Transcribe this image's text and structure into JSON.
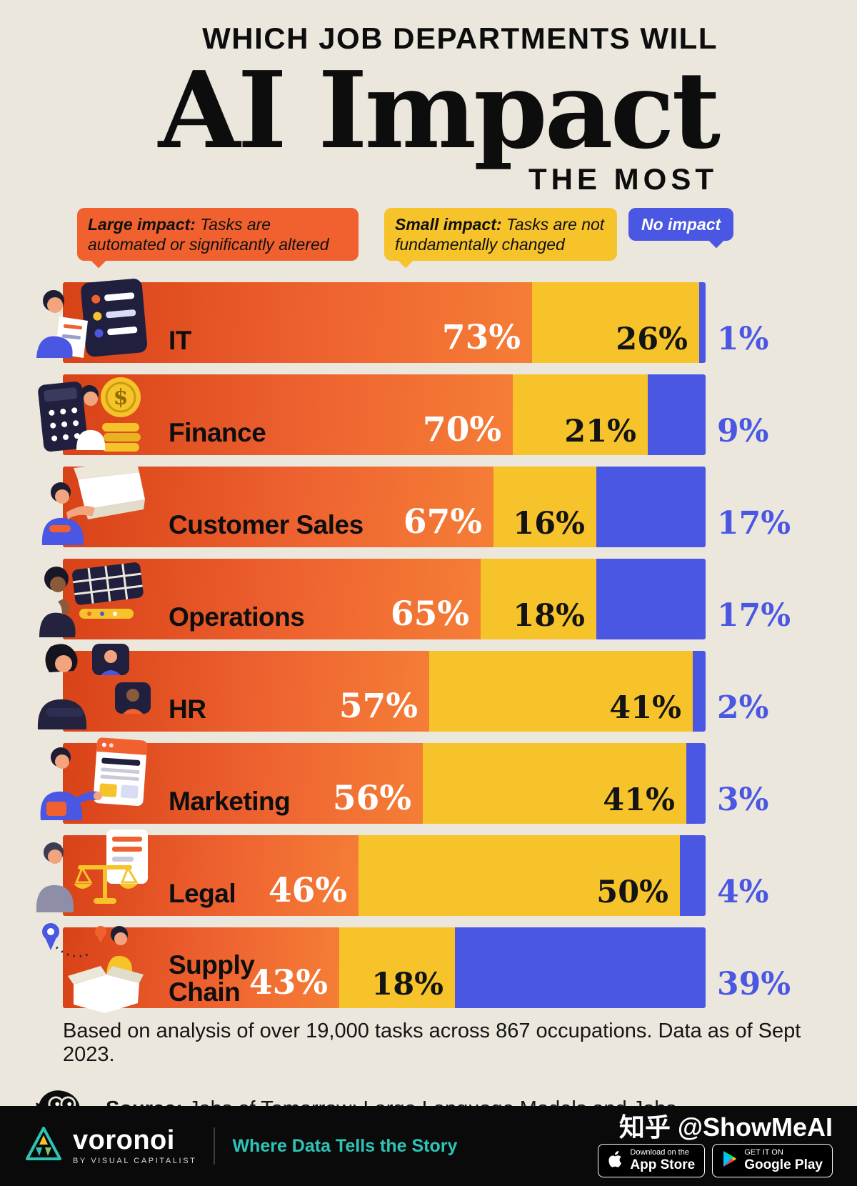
{
  "title": {
    "line1": "WHICH JOB DEPARTMENTS WILL",
    "main": "AI Impact",
    "line3": "THE MOST"
  },
  "legend": [
    {
      "lead": "Large impact:",
      "rest": " Tasks are automated or significantly altered"
    },
    {
      "lead": "Small impact:",
      "rest": " Tasks are not fundamentally changed"
    },
    {
      "lead": "No impact",
      "rest": ""
    }
  ],
  "chart_data": {
    "type": "bar",
    "orientation": "horizontal",
    "stacked": true,
    "unit": "%",
    "xlim": [
      0,
      100
    ],
    "title": "Which Job Departments Will AI Impact the Most",
    "categories": [
      "IT",
      "Finance",
      "Customer Sales",
      "Operations",
      "HR",
      "Marketing",
      "Legal",
      "Supply Chain"
    ],
    "series": [
      {
        "name": "Large impact",
        "color": "#F0612F",
        "values": [
          73,
          70,
          67,
          65,
          57,
          56,
          46,
          43
        ]
      },
      {
        "name": "Small impact",
        "color": "#F6C32B",
        "values": [
          26,
          21,
          16,
          18,
          41,
          41,
          50,
          18
        ]
      },
      {
        "name": "No impact",
        "color": "#4A57E3",
        "values": [
          1,
          9,
          17,
          17,
          2,
          3,
          4,
          39
        ]
      }
    ]
  },
  "rows": [
    {
      "label": "IT",
      "large": "73%",
      "small": "26%",
      "none": "1%"
    },
    {
      "label": "Finance",
      "large": "70%",
      "small": "21%",
      "none": "9%"
    },
    {
      "label": "Customer Sales",
      "large": "67%",
      "small": "16%",
      "none": "17%"
    },
    {
      "label": "Operations",
      "large": "65%",
      "small": "18%",
      "none": "17%"
    },
    {
      "label": "HR",
      "large": "57%",
      "small": "41%",
      "none": "2%"
    },
    {
      "label": "Marketing",
      "large": "56%",
      "small": "41%",
      "none": "3%"
    },
    {
      "label": "Legal",
      "large": "46%",
      "small": "50%",
      "none": "4%"
    },
    {
      "label": "Supply Chain",
      "large": "43%",
      "small": "18%",
      "none": "39%"
    }
  ],
  "footnote": "Based on analysis of over 19,000 tasks across 867 occupations. Data as of Sept 2023.",
  "source": {
    "label": "Source:",
    "text": " Jobs of Tomorrow: Large Language Models and Jobs"
  },
  "footer": {
    "brand": "voronoi",
    "brand_sub": "BY VISUAL CAPITALIST",
    "tagline": "Where Data Tells the Story",
    "watermark": "知乎 @ShowMeAI",
    "appstore_small": "Download on the",
    "appstore_big": "App Store",
    "gplay_small": "GET IT ON",
    "gplay_big": "Google Play"
  },
  "colors": {
    "background": "#ECE7DD",
    "large_impact": "#F0612F",
    "small_impact": "#F6C32B",
    "no_impact": "#4A57E3",
    "footer_bg": "#0A0A0B",
    "tagline_teal": "#2EC4B6",
    "text": "#101010"
  }
}
